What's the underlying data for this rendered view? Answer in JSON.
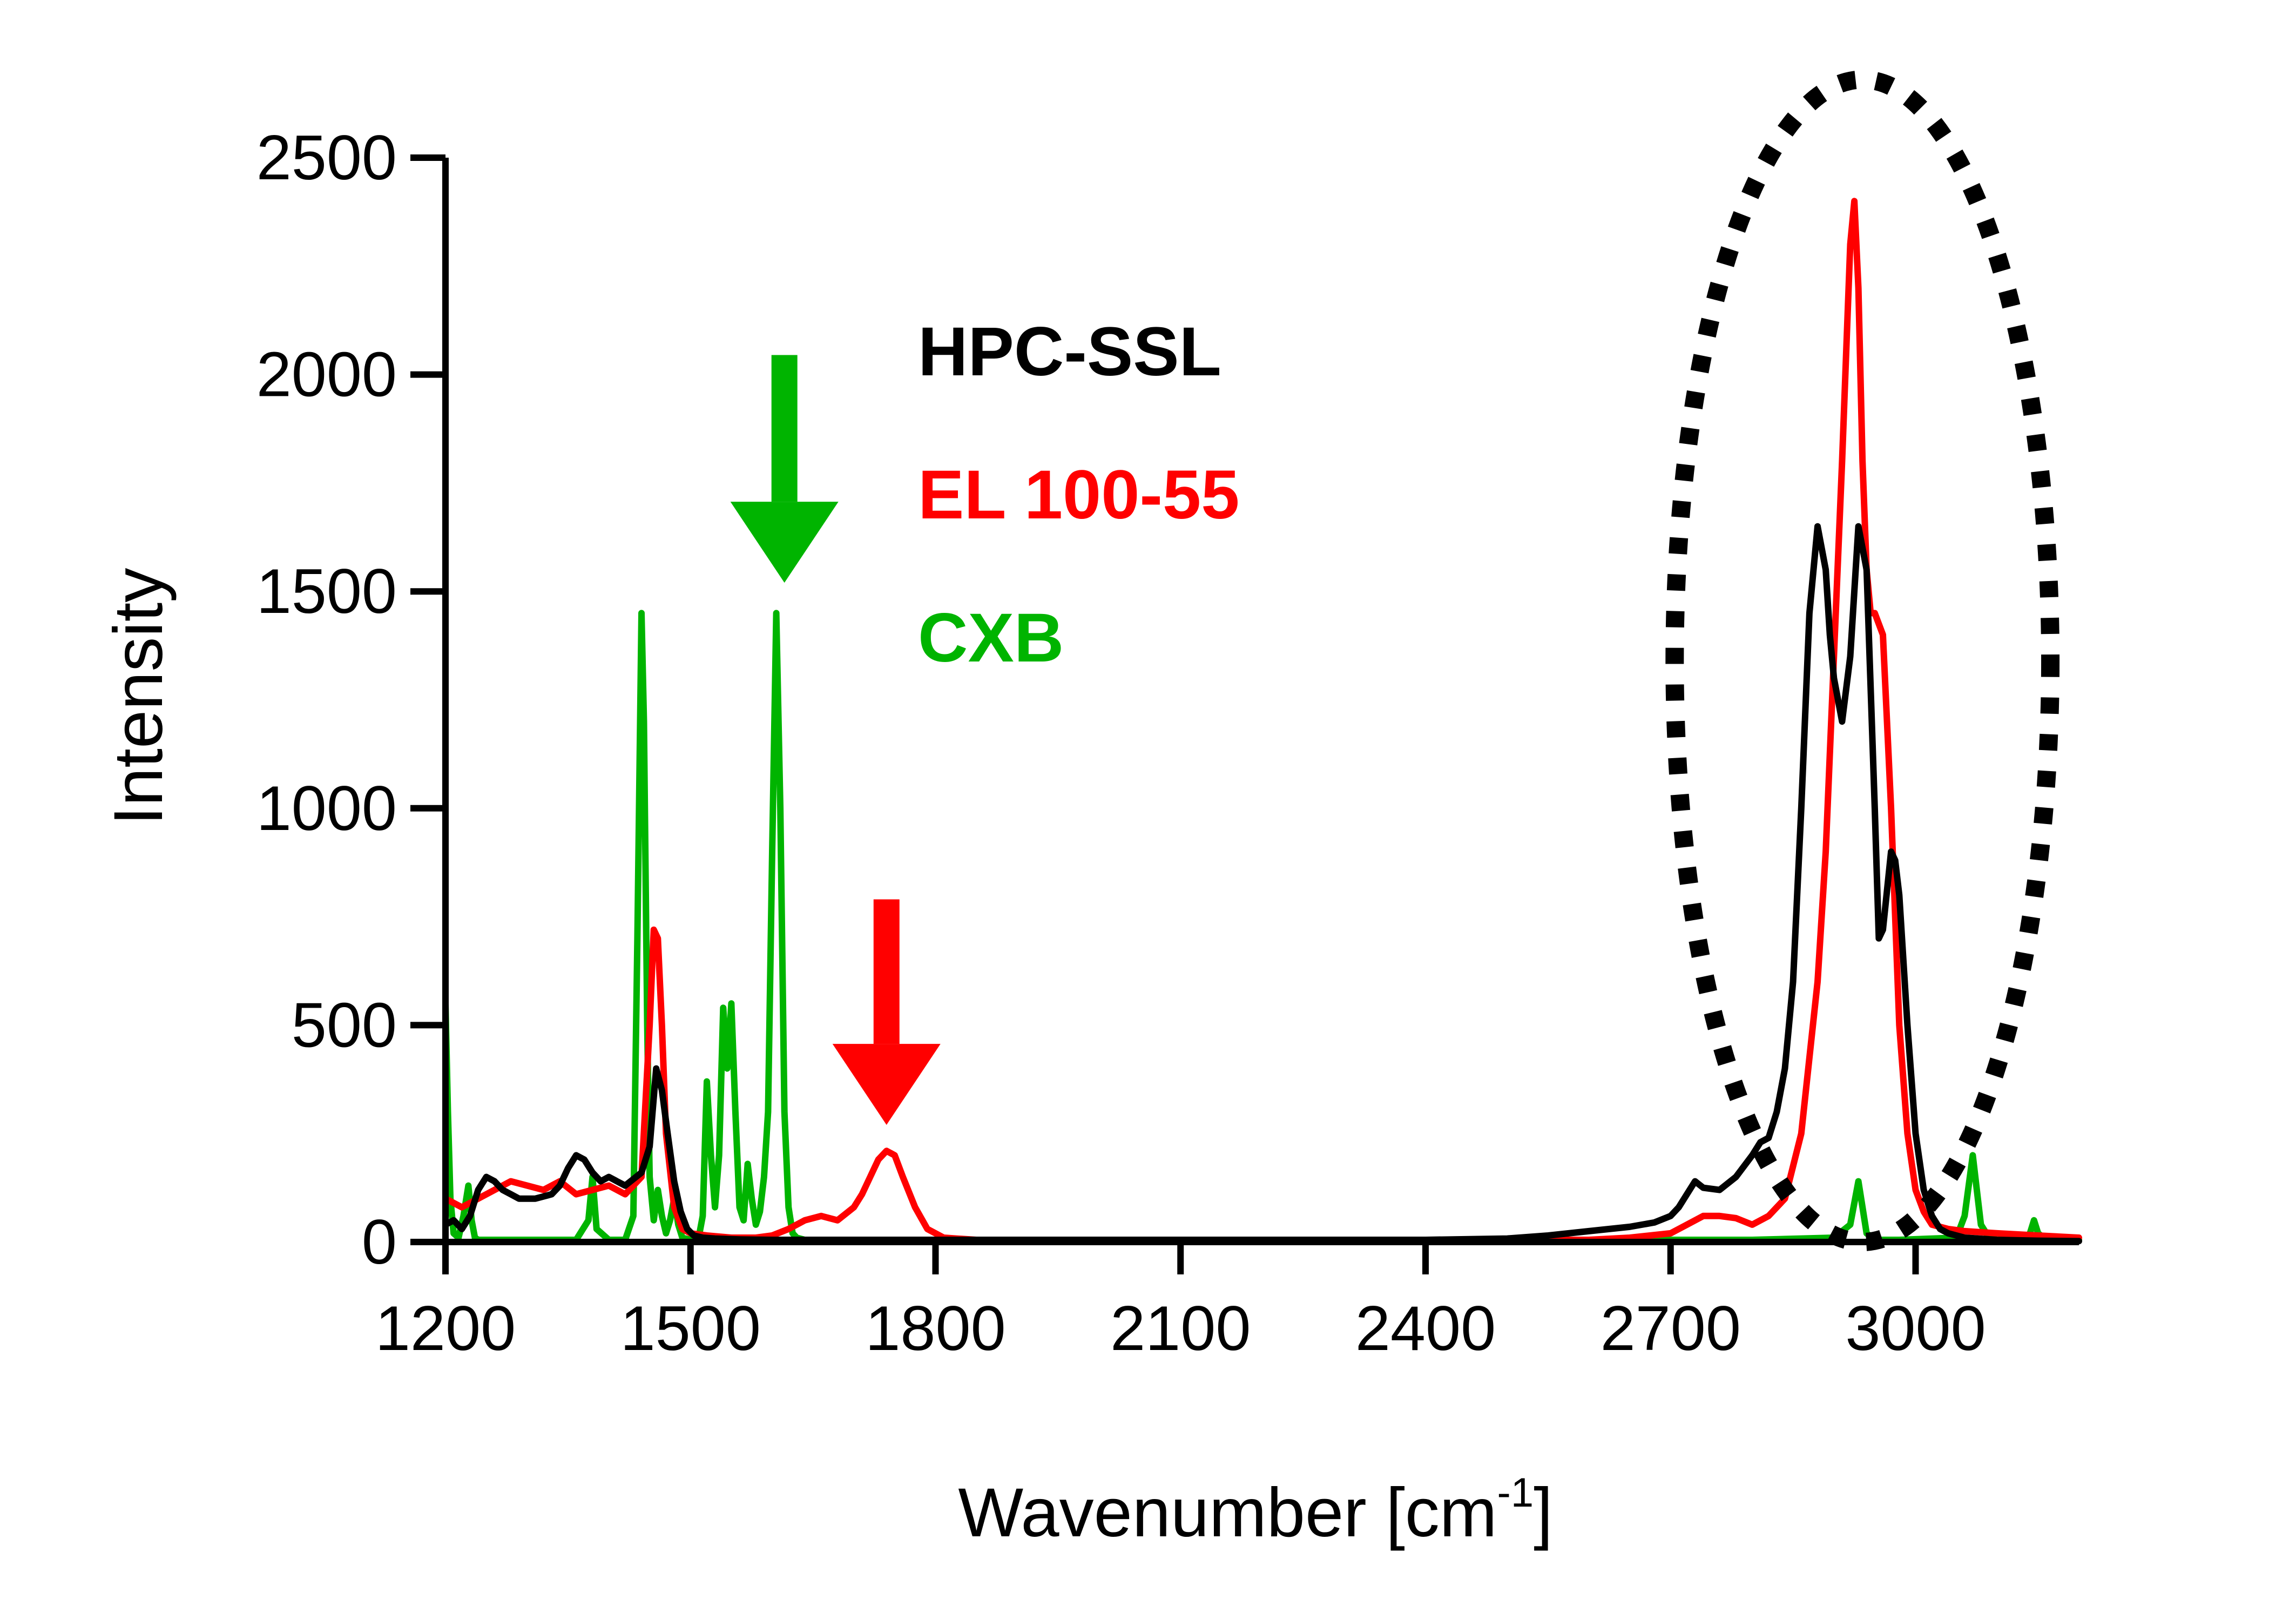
{
  "chart_data": {
    "type": "line",
    "title": "",
    "xlabel": "Wavenumber [cm",
    "xlabel_sup": "-1",
    "xlabel_close": "]",
    "ylabel": "Intensity",
    "xlim": [
      1200,
      3200
    ],
    "ylim": [
      0,
      2500
    ],
    "xticks": [
      1200,
      1500,
      1800,
      2100,
      2400,
      2700,
      3000
    ],
    "yticks": [
      0,
      500,
      1000,
      1500,
      2000,
      2500
    ],
    "grid": false,
    "legend_position": "upper-center (inside plot)",
    "series": [
      {
        "name": "HPC-SSL",
        "color": "#000000",
        "x": [
          1200,
          1210,
          1220,
          1230,
          1240,
          1250,
          1260,
          1270,
          1280,
          1290,
          1300,
          1310,
          1320,
          1330,
          1340,
          1350,
          1360,
          1370,
          1380,
          1390,
          1400,
          1410,
          1420,
          1430,
          1440,
          1450,
          1458,
          1465,
          1472,
          1480,
          1488,
          1496,
          1504,
          1515,
          1530,
          1560,
          1600,
          1700,
          1800,
          2000,
          2200,
          2400,
          2500,
          2550,
          2600,
          2650,
          2680,
          2700,
          2710,
          2720,
          2730,
          2740,
          2760,
          2780,
          2800,
          2810,
          2820,
          2830,
          2840,
          2850,
          2860,
          2870,
          2880,
          2890,
          2895,
          2900,
          2910,
          2920,
          2930,
          2940,
          2950,
          2955,
          2960,
          2970,
          2975,
          2980,
          2990,
          3000,
          3010,
          3020,
          3030,
          3040,
          3060,
          3100,
          3150,
          3200
        ],
        "y": [
          40,
          50,
          30,
          60,
          120,
          150,
          140,
          120,
          110,
          100,
          100,
          100,
          105,
          110,
          130,
          170,
          200,
          190,
          160,
          140,
          150,
          140,
          130,
          145,
          160,
          220,
          400,
          350,
          250,
          140,
          70,
          30,
          15,
          10,
          8,
          6,
          5,
          5,
          5,
          5,
          5,
          5,
          8,
          15,
          25,
          35,
          45,
          60,
          80,
          110,
          140,
          125,
          120,
          150,
          200,
          230,
          240,
          300,
          400,
          600,
          1000,
          1450,
          1650,
          1550,
          1400,
          1300,
          1200,
          1350,
          1650,
          1550,
          1000,
          700,
          720,
          900,
          880,
          800,
          500,
          250,
          120,
          60,
          30,
          20,
          10,
          5,
          3,
          2
        ]
      },
      {
        "name": "EL 100-55",
        "color": "#ff0000",
        "x": [
          1200,
          1220,
          1240,
          1260,
          1280,
          1300,
          1320,
          1340,
          1360,
          1380,
          1400,
          1420,
          1440,
          1450,
          1455,
          1460,
          1465,
          1470,
          1480,
          1490,
          1500,
          1520,
          1550,
          1580,
          1600,
          1620,
          1640,
          1660,
          1680,
          1700,
          1710,
          1720,
          1730,
          1740,
          1750,
          1760,
          1775,
          1790,
          1810,
          1850,
          2000,
          2200,
          2400,
          2600,
          2650,
          2700,
          2720,
          2740,
          2760,
          2780,
          2800,
          2820,
          2840,
          2860,
          2880,
          2890,
          2900,
          2910,
          2920,
          2925,
          2930,
          2935,
          2940,
          2945,
          2950,
          2960,
          2970,
          2980,
          2990,
          3000,
          3010,
          3020,
          3040,
          3060,
          3100,
          3150,
          3200
        ],
        "y": [
          100,
          80,
          100,
          120,
          140,
          130,
          120,
          140,
          110,
          120,
          130,
          110,
          150,
          500,
          720,
          700,
          500,
          250,
          80,
          30,
          20,
          15,
          10,
          10,
          15,
          30,
          50,
          60,
          50,
          80,
          110,
          150,
          190,
          210,
          200,
          150,
          80,
          30,
          10,
          5,
          5,
          5,
          5,
          5,
          10,
          20,
          40,
          60,
          60,
          55,
          40,
          60,
          100,
          250,
          600,
          900,
          1350,
          1800,
          2300,
          2400,
          2200,
          1800,
          1550,
          1450,
          1450,
          1400,
          1000,
          500,
          250,
          120,
          70,
          40,
          30,
          25,
          20,
          15,
          10
        ]
      },
      {
        "name": "CXB",
        "color": "#00b400",
        "x": [
          1200,
          1203,
          1206,
          1210,
          1216,
          1222,
          1228,
          1232,
          1236,
          1240,
          1260,
          1280,
          1300,
          1320,
          1340,
          1360,
          1375,
          1380,
          1385,
          1400,
          1420,
          1430,
          1435,
          1440,
          1443,
          1447,
          1450,
          1455,
          1460,
          1465,
          1470,
          1475,
          1480,
          1485,
          1490,
          1500,
          1510,
          1515,
          1520,
          1525,
          1530,
          1535,
          1540,
          1545,
          1550,
          1555,
          1560,
          1565,
          1570,
          1575,
          1580,
          1585,
          1590,
          1595,
          1600,
          1605,
          1610,
          1615,
          1620,
          1625,
          1630,
          1640,
          1650,
          1660,
          1700,
          1800,
          2000,
          2200,
          2400,
          2600,
          2800,
          2900,
          2920,
          2930,
          2935,
          2940,
          2950,
          2980,
          3050,
          3060,
          3070,
          3075,
          3080,
          3090,
          3100,
          3130,
          3140,
          3145,
          3150,
          3160,
          3200
        ],
        "y": [
          550,
          300,
          100,
          20,
          10,
          60,
          130,
          50,
          10,
          5,
          5,
          5,
          5,
          5,
          5,
          5,
          50,
          150,
          30,
          5,
          5,
          60,
          700,
          1450,
          1200,
          500,
          150,
          50,
          120,
          60,
          20,
          50,
          100,
          40,
          10,
          5,
          10,
          60,
          370,
          200,
          80,
          200,
          540,
          400,
          550,
          300,
          80,
          50,
          180,
          100,
          40,
          70,
          150,
          300,
          900,
          1450,
          1000,
          300,
          80,
          20,
          10,
          5,
          5,
          5,
          5,
          5,
          5,
          5,
          5,
          5,
          5,
          10,
          40,
          140,
          80,
          20,
          5,
          5,
          10,
          60,
          200,
          120,
          40,
          10,
          5,
          5,
          20,
          50,
          20,
          5,
          5
        ]
      }
    ],
    "legend": [
      {
        "label": "HPC-SSL",
        "color": "#000000"
      },
      {
        "label": "EL 100-55",
        "color": "#ff0000"
      },
      {
        "label": "CXB",
        "color": "#00b400"
      }
    ],
    "annotations": [
      {
        "type": "arrow",
        "color": "#00b400",
        "x": 1615,
        "y_top": 2045,
        "y_tip": 1520
      },
      {
        "type": "arrow",
        "color": "#ff0000",
        "x": 1740,
        "y_top": 790,
        "y_tip": 270
      },
      {
        "type": "dotted-ellipse",
        "color": "#000000",
        "cx": 2935,
        "cy": 1340,
        "rx": 230,
        "ry": 1340
      }
    ]
  }
}
